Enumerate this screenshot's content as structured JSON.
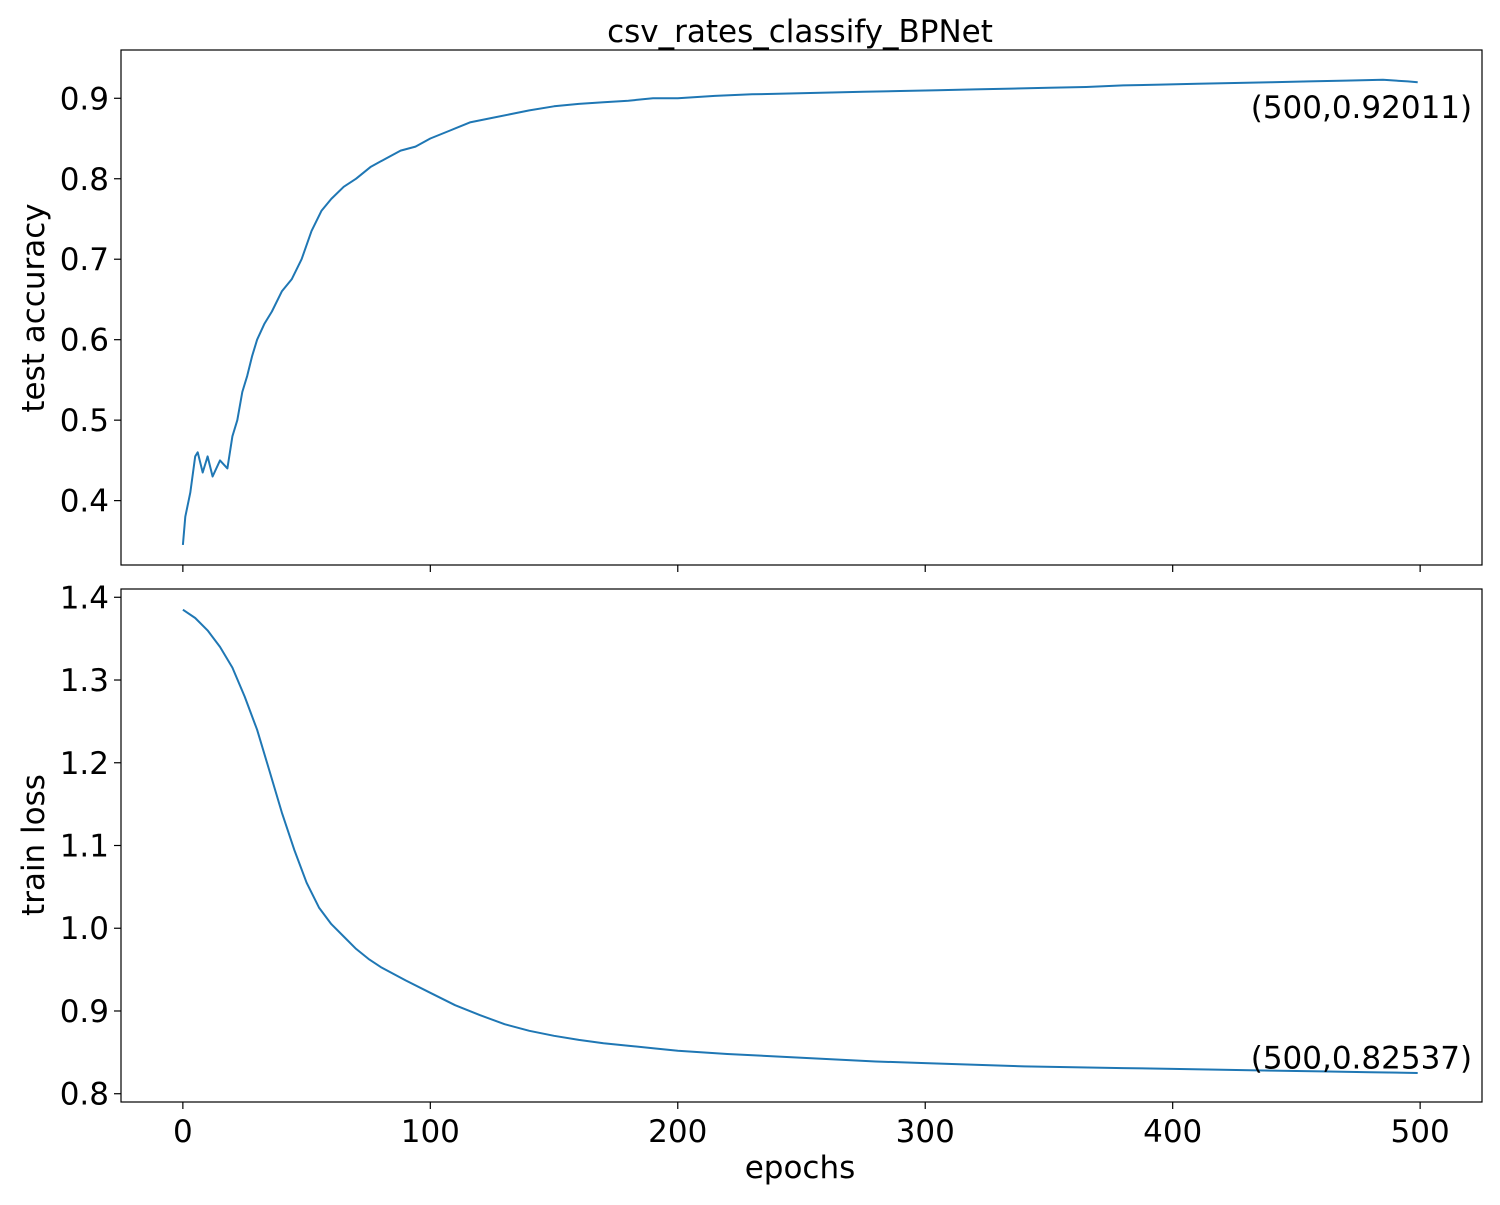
{
  "chart_data": [
    {
      "type": "line",
      "title": "csv_rates_classify_BPNet",
      "xlabel": "",
      "ylabel": "test accuracy",
      "xlim": [
        -25,
        525
      ],
      "ylim": [
        0.32,
        0.96
      ],
      "xticks": [
        0,
        100,
        200,
        300,
        400,
        500
      ],
      "xtick_labels_visible": false,
      "yticks": [
        0.4,
        0.5,
        0.6,
        0.7,
        0.8,
        0.9
      ],
      "ytick_labels": [
        "0.4",
        "0.5",
        "0.6",
        "0.7",
        "0.8",
        "0.9"
      ],
      "grid": false,
      "annotation": {
        "text": "(500,0.92011)",
        "x": 500,
        "y": 0.92011
      },
      "series": [
        {
          "color": "#1f77b4",
          "x": [
            0,
            1,
            3,
            5,
            6,
            8,
            10,
            12,
            15,
            18,
            20,
            22,
            24,
            26,
            28,
            30,
            33,
            36,
            40,
            44,
            48,
            52,
            56,
            60,
            65,
            70,
            76,
            82,
            88,
            94,
            100,
            108,
            116,
            124,
            132,
            140,
            150,
            160,
            170,
            180,
            190,
            200,
            215,
            230,
            245,
            260,
            275,
            290,
            305,
            320,
            335,
            350,
            365,
            380,
            395,
            410,
            425,
            440,
            455,
            470,
            485,
            495,
            499
          ],
          "y": [
            0.345,
            0.38,
            0.41,
            0.455,
            0.46,
            0.435,
            0.455,
            0.43,
            0.45,
            0.44,
            0.48,
            0.5,
            0.535,
            0.555,
            0.58,
            0.6,
            0.62,
            0.635,
            0.66,
            0.675,
            0.7,
            0.735,
            0.76,
            0.775,
            0.79,
            0.8,
            0.815,
            0.825,
            0.835,
            0.84,
            0.85,
            0.86,
            0.87,
            0.875,
            0.88,
            0.885,
            0.89,
            0.893,
            0.895,
            0.897,
            0.9,
            0.9,
            0.903,
            0.905,
            0.906,
            0.907,
            0.908,
            0.909,
            0.91,
            0.911,
            0.912,
            0.913,
            0.914,
            0.916,
            0.917,
            0.918,
            0.919,
            0.92,
            0.921,
            0.922,
            0.923,
            0.921,
            0.92
          ]
        }
      ]
    },
    {
      "type": "line",
      "title": "",
      "xlabel": "epochs",
      "ylabel": "train loss",
      "xlim": [
        -25,
        525
      ],
      "ylim": [
        0.79,
        1.41
      ],
      "xticks": [
        0,
        100,
        200,
        300,
        400,
        500
      ],
      "xtick_labels": [
        "0",
        "100",
        "200",
        "300",
        "400",
        "500"
      ],
      "yticks": [
        0.8,
        0.9,
        1.0,
        1.1,
        1.2,
        1.3,
        1.4
      ],
      "ytick_labels": [
        "0.8",
        "0.9",
        "1.0",
        "1.1",
        "1.2",
        "1.3",
        "1.4"
      ],
      "grid": false,
      "annotation": {
        "text": "(500,0.82537)",
        "x": 500,
        "y": 0.82537
      },
      "series": [
        {
          "color": "#1f77b4",
          "x": [
            0,
            5,
            10,
            15,
            20,
            25,
            30,
            35,
            40,
            45,
            50,
            55,
            60,
            65,
            70,
            75,
            80,
            90,
            100,
            110,
            120,
            130,
            140,
            150,
            160,
            170,
            180,
            190,
            200,
            220,
            240,
            260,
            280,
            300,
            320,
            340,
            360,
            380,
            400,
            420,
            440,
            460,
            480,
            499
          ],
          "y": [
            1.385,
            1.375,
            1.36,
            1.34,
            1.315,
            1.28,
            1.24,
            1.19,
            1.14,
            1.095,
            1.055,
            1.025,
            1.005,
            0.99,
            0.975,
            0.963,
            0.953,
            0.937,
            0.922,
            0.907,
            0.895,
            0.884,
            0.876,
            0.87,
            0.865,
            0.861,
            0.858,
            0.855,
            0.852,
            0.848,
            0.845,
            0.842,
            0.839,
            0.837,
            0.835,
            0.833,
            0.832,
            0.831,
            0.83,
            0.829,
            0.828,
            0.827,
            0.826,
            0.825
          ]
        }
      ]
    }
  ]
}
